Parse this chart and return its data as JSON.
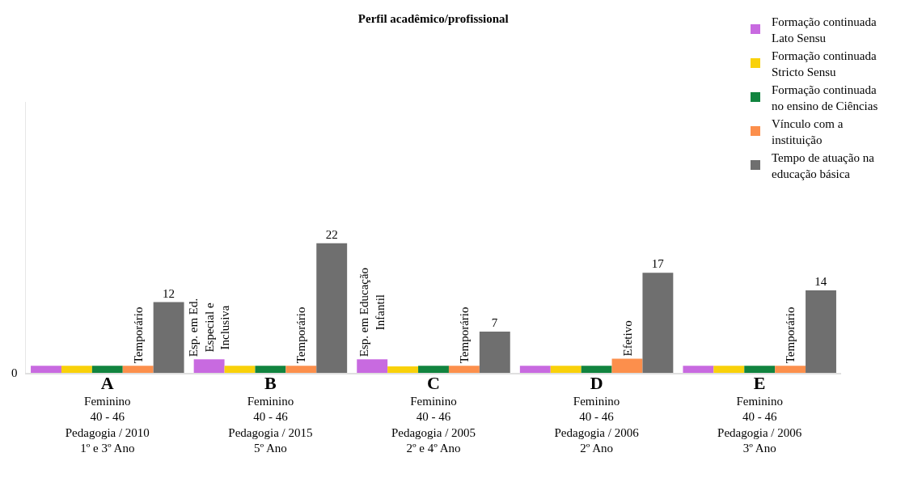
{
  "chart_data": {
    "type": "bar",
    "title": "Perfil acadêmico/profissional",
    "ylim": [
      0,
      46
    ],
    "categories": [
      "A\nFeminino\n40 - 46\nPedagogia / 2010\n1º e 3º Ano",
      "B\nFeminino\n40 - 46\nPedagogia / 2015\n5º Ano",
      "C\nFeminino\n40 - 46\nPedagogia / 2005\n2º e 4º Ano",
      "D\nFeminino\n40 - 46\nPedagogia / 2006\n2º Ano",
      "E\nFeminino\n40 - 46\nPedagogia / 2006\n3º Ano"
    ],
    "series": [
      {
        "name": "Formação continuada Lato Sensu",
        "color": "#c86ae0",
        "values": [
          1.2,
          2.3,
          2.3,
          1.2,
          1.2
        ],
        "value_labels": [
          null,
          "Esp. em Ed.\nEspecial e\nInclusiva",
          "Esp. em Educação\nInfantil",
          null,
          null
        ]
      },
      {
        "name": "Formação continuada Stricto Sensu",
        "color": "#f9d10a",
        "values": [
          1.2,
          1.2,
          1.1,
          1.2,
          1.2
        ]
      },
      {
        "name": "Formação continuada  no ensino de Ciências",
        "color": "#11843f",
        "values": [
          1.2,
          1.2,
          1.2,
          1.2,
          1.2
        ]
      },
      {
        "name": "Vínculo com a instituição",
        "color": "#fc8f4c",
        "values": [
          1.2,
          1.2,
          1.2,
          2.4,
          1.2
        ],
        "value_labels": [
          "Temporário",
          "Temporário",
          "Temporário",
          "Efetivo",
          "Temporário"
        ]
      },
      {
        "name": "Tempo de atuação na educação básica",
        "color": "#6f6f6f",
        "values": [
          12,
          22,
          7,
          17,
          14
        ],
        "value_labels": [
          "12",
          "22",
          "7",
          "17",
          "14"
        ]
      }
    ],
    "annotations": [
      "0"
    ],
    "legend": "top right"
  }
}
